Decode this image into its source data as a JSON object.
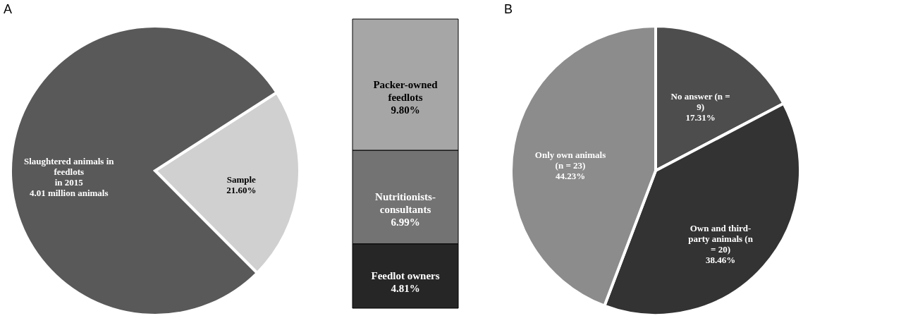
{
  "chart_data": [
    {
      "type": "pie",
      "title": "A",
      "categories": [
        "Sample",
        "Slaughtered animals in feedlots\nin 2015\n4.01 million animals"
      ],
      "values": [
        21.6,
        78.4
      ],
      "value_labels": [
        "21.60%",
        null
      ],
      "colors": [
        "#d0d0d0",
        "#595959"
      ]
    },
    {
      "type": "bar",
      "stacked": true,
      "categories": [
        null
      ],
      "series": [
        {
          "name": "Feedlot owners",
          "color": "#262626",
          "values": [
            4.81
          ],
          "value_labels": [
            "4.81%"
          ]
        },
        {
          "name": "Nutritionists-consultants",
          "color": "#737373",
          "values": [
            6.99
          ],
          "value_labels": [
            "6.99%"
          ]
        },
        {
          "name": "Packer-owned feedlots",
          "color": "#a6a6a6",
          "values": [
            9.8
          ],
          "value_labels": [
            "9.80%"
          ]
        }
      ]
    },
    {
      "type": "pie",
      "title": "B",
      "categories": [
        "No answer (n = 9)",
        "Own and third-party animals (n = 20)",
        "Only own animals (n = 23)"
      ],
      "values": [
        17.31,
        38.46,
        44.23
      ],
      "value_labels": [
        "17.31%",
        "38.46%",
        "44.23%"
      ],
      "colors": [
        "#4d4d4d",
        "#333333",
        "#8c8c8c"
      ]
    }
  ]
}
